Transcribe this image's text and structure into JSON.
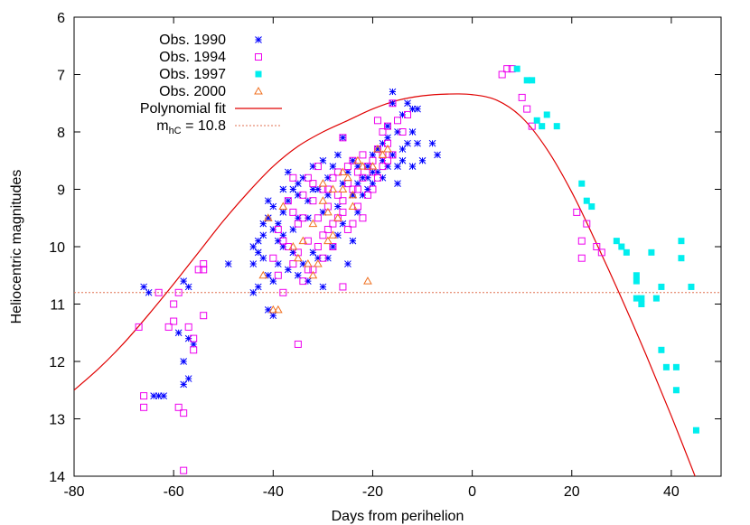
{
  "chart_data": {
    "type": "scatter",
    "title": "",
    "xlabel": "Days from perihelion",
    "ylabel": "Heliocentric magnitudes",
    "xlim": [
      -80,
      50
    ],
    "ylim": [
      6,
      14
    ],
    "y_inverted": true,
    "x_ticks": [
      "-80",
      "-60",
      "-40",
      "-20",
      "0",
      "20",
      "40"
    ],
    "y_ticks": [
      "6",
      "7",
      "8",
      "9",
      "10",
      "11",
      "12",
      "13",
      "14"
    ],
    "grid": false,
    "legend_position": "top-left",
    "colors": {
      "obs1990": "#0000ff",
      "obs1994": "#ee00ee",
      "obs1997": "#00eeee",
      "obs2000": "#f07020",
      "fit": "#e00000",
      "threshold": "#e07050"
    },
    "legend": [
      {
        "label": "Obs. 1990",
        "marker": "asterisk"
      },
      {
        "label": "Obs. 1994",
        "marker": "open-square"
      },
      {
        "label": "Obs. 1997",
        "marker": "filled-square"
      },
      {
        "label": "Obs. 2000",
        "marker": "open-triangle"
      },
      {
        "label": "Polynomial fit",
        "marker": "line"
      },
      {
        "label_main": "m",
        "label_sub": "hC",
        "label_tail": " = 10.8",
        "marker": "dotted-line"
      }
    ],
    "threshold": {
      "y": 10.8
    },
    "polynomial_fit": {
      "x": [
        -80,
        -75,
        -70,
        -65,
        -60,
        -55,
        -50,
        -45,
        -40,
        -35,
        -30,
        -25,
        -20,
        -15,
        -10,
        -5,
        0,
        5,
        10,
        15,
        20,
        25,
        30,
        35,
        40,
        45
      ],
      "y": [
        12.5,
        12.12,
        11.68,
        11.18,
        10.65,
        10.1,
        9.55,
        9.05,
        8.6,
        8.25,
        8.0,
        7.8,
        7.6,
        7.45,
        7.37,
        7.34,
        7.35,
        7.45,
        7.75,
        8.3,
        9.05,
        9.95,
        10.9,
        11.9,
        12.95,
        14.05
      ]
    },
    "series": [
      {
        "name": "Obs. 1990",
        "marker": "asterisk",
        "points": [
          [
            -66,
            10.7
          ],
          [
            -65,
            10.8
          ],
          [
            -58,
            10.6
          ],
          [
            -57,
            10.7
          ],
          [
            -59,
            11.5
          ],
          [
            -57,
            11.6
          ],
          [
            -56,
            11.7
          ],
          [
            -58,
            12.0
          ],
          [
            -57,
            12.3
          ],
          [
            -58,
            12.4
          ],
          [
            -63,
            12.6
          ],
          [
            -62,
            12.6
          ],
          [
            -64,
            12.6
          ],
          [
            -49,
            10.3
          ],
          [
            -44,
            10.8
          ],
          [
            -43,
            10.7
          ],
          [
            -44,
            10.0
          ],
          [
            -43,
            9.9
          ],
          [
            -42,
            9.8
          ],
          [
            -41,
            9.5
          ],
          [
            -40,
            9.7
          ],
          [
            -41,
            9.2
          ],
          [
            -40,
            9.3
          ],
          [
            -39,
            9.6
          ],
          [
            -38,
            9.0
          ],
          [
            -38,
            9.4
          ],
          [
            -37,
            9.2
          ],
          [
            -37,
            8.7
          ],
          [
            -36,
            9.0
          ],
          [
            -35,
            9.5
          ],
          [
            -35,
            8.9
          ],
          [
            -34,
            8.8
          ],
          [
            -33,
            9.2
          ],
          [
            -32,
            8.6
          ],
          [
            -31,
            9.0
          ],
          [
            -30,
            8.5
          ],
          [
            -29,
            8.8
          ],
          [
            -28,
            8.6
          ],
          [
            -27,
            8.4
          ],
          [
            -26,
            8.1
          ],
          [
            -25,
            8.7
          ],
          [
            -24,
            8.5
          ],
          [
            -23,
            8.9
          ],
          [
            -22,
            8.8
          ],
          [
            -21,
            8.6
          ],
          [
            -20,
            8.4
          ],
          [
            -19,
            8.3
          ],
          [
            -18,
            8.2
          ],
          [
            -17,
            7.9
          ],
          [
            -16,
            7.3
          ],
          [
            -16,
            7.5
          ],
          [
            -15,
            8.0
          ],
          [
            -14,
            7.7
          ],
          [
            -14,
            8.3
          ],
          [
            -13,
            7.5
          ],
          [
            -12,
            7.6
          ],
          [
            -12,
            8.0
          ],
          [
            -11,
            7.6
          ],
          [
            -11,
            8.2
          ],
          [
            -10,
            8.5
          ],
          [
            -8,
            8.2
          ],
          [
            -7,
            8.4
          ],
          [
            -42,
            10.2
          ],
          [
            -41,
            10.5
          ],
          [
            -40,
            10.6
          ],
          [
            -40,
            11.2
          ],
          [
            -41,
            11.1
          ],
          [
            -39,
            10.3
          ],
          [
            -38,
            10.0
          ],
          [
            -37,
            10.4
          ],
          [
            -36,
            10.1
          ],
          [
            -35,
            10.5
          ],
          [
            -34,
            10.3
          ],
          [
            -33,
            10.6
          ],
          [
            -32,
            10.1
          ],
          [
            -31,
            10.2
          ],
          [
            -30,
            10.7
          ],
          [
            -29,
            10.2
          ],
          [
            -28,
            10.0
          ],
          [
            -27,
            9.8
          ],
          [
            -26,
            9.6
          ],
          [
            -25,
            10.3
          ],
          [
            -24,
            9.9
          ],
          [
            -23,
            9.4
          ],
          [
            -22,
            9.1
          ],
          [
            -21,
            9.0
          ],
          [
            -20,
            8.9
          ],
          [
            -19,
            8.7
          ],
          [
            -18,
            8.5
          ],
          [
            -17,
            8.6
          ],
          [
            -16,
            8.4
          ],
          [
            -15,
            8.6
          ],
          [
            -14,
            8.5
          ],
          [
            -13,
            8.2
          ],
          [
            -12,
            8.6
          ],
          [
            -43,
            10.1
          ],
          [
            -42,
            9.6
          ],
          [
            -39,
            9.9
          ],
          [
            -36,
            9.7
          ],
          [
            -33,
            9.5
          ],
          [
            -30,
            9.4
          ],
          [
            -27,
            9.3
          ],
          [
            -24,
            9.1
          ],
          [
            -21,
            8.8
          ],
          [
            -18,
            8.8
          ],
          [
            -44,
            10.3
          ],
          [
            -38,
            9.8
          ],
          [
            -35,
            9.1
          ],
          [
            -32,
            9.0
          ],
          [
            -29,
            9.1
          ],
          [
            -26,
            8.9
          ],
          [
            -23,
            8.6
          ],
          [
            -20,
            8.7
          ],
          [
            -17,
            8.1
          ],
          [
            -15,
            8.9
          ]
        ]
      },
      {
        "name": "Obs. 1994",
        "marker": "open-square",
        "points": [
          [
            -67,
            11.4
          ],
          [
            -66,
            12.6
          ],
          [
            -66,
            12.8
          ],
          [
            -63,
            10.8
          ],
          [
            -61,
            11.4
          ],
          [
            -60,
            11.3
          ],
          [
            -60,
            11.0
          ],
          [
            -59,
            10.8
          ],
          [
            -59,
            12.8
          ],
          [
            -58,
            12.9
          ],
          [
            -58,
            13.9
          ],
          [
            -57,
            11.4
          ],
          [
            -56,
            11.6
          ],
          [
            -56,
            11.8
          ],
          [
            -55,
            10.4
          ],
          [
            -54,
            10.3
          ],
          [
            -54,
            10.4
          ],
          [
            -54,
            11.2
          ],
          [
            -40,
            10.2
          ],
          [
            -39,
            10.5
          ],
          [
            -38,
            10.8
          ],
          [
            -38,
            9.9
          ],
          [
            -37,
            10.0
          ],
          [
            -36,
            10.3
          ],
          [
            -36,
            9.4
          ],
          [
            -35,
            9.6
          ],
          [
            -35,
            11.7
          ],
          [
            -34,
            10.6
          ],
          [
            -34,
            9.1
          ],
          [
            -33,
            9.9
          ],
          [
            -33,
            8.8
          ],
          [
            -32,
            9.2
          ],
          [
            -32,
            10.4
          ],
          [
            -31,
            9.5
          ],
          [
            -31,
            8.6
          ],
          [
            -30,
            9.8
          ],
          [
            -30,
            10.2
          ],
          [
            -29,
            9.0
          ],
          [
            -29,
            9.3
          ],
          [
            -28,
            9.6
          ],
          [
            -28,
            10.0
          ],
          [
            -27,
            8.7
          ],
          [
            -27,
            9.1
          ],
          [
            -26,
            8.1
          ],
          [
            -26,
            10.7
          ],
          [
            -26,
            9.4
          ],
          [
            -25,
            8.9
          ],
          [
            -25,
            9.7
          ],
          [
            -24,
            9.0
          ],
          [
            -24,
            8.5
          ],
          [
            -23,
            8.7
          ],
          [
            -23,
            9.3
          ],
          [
            -22,
            8.4
          ],
          [
            -22,
            8.8
          ],
          [
            -21,
            8.6
          ],
          [
            -20,
            8.5
          ],
          [
            -20,
            9.0
          ],
          [
            -19,
            7.8
          ],
          [
            -19,
            8.3
          ],
          [
            -18,
            8.0
          ],
          [
            -18,
            8.6
          ],
          [
            -17,
            8.2
          ],
          [
            -17,
            7.9
          ],
          [
            -16,
            7.5
          ],
          [
            -16,
            8.4
          ],
          [
            -15,
            7.8
          ],
          [
            -14,
            8.0
          ],
          [
            -13,
            7.7
          ],
          [
            -39,
            9.7
          ],
          [
            -37,
            9.2
          ],
          [
            -36,
            8.8
          ],
          [
            -34,
            9.5
          ],
          [
            -32,
            8.9
          ],
          [
            -30,
            9.0
          ],
          [
            -28,
            8.8
          ],
          [
            -26,
            9.2
          ],
          [
            -24,
            9.6
          ],
          [
            -22,
            9.5
          ],
          [
            -20,
            8.7
          ],
          [
            -18,
            8.4
          ],
          [
            -35,
            10.1
          ],
          [
            -33,
            10.4
          ],
          [
            -31,
            10.0
          ],
          [
            -29,
            9.7
          ],
          [
            -27,
            9.5
          ],
          [
            -25,
            8.6
          ],
          [
            -23,
            9.0
          ],
          [
            -21,
            9.1
          ],
          [
            -19,
            8.8
          ],
          [
            -17,
            8.5
          ],
          [
            6,
            7.0
          ],
          [
            7,
            6.9
          ],
          [
            8,
            6.9
          ],
          [
            10,
            7.4
          ],
          [
            11,
            7.6
          ],
          [
            12,
            7.9
          ],
          [
            21,
            9.4
          ],
          [
            22,
            9.9
          ],
          [
            22,
            10.2
          ],
          [
            23,
            9.6
          ],
          [
            25,
            10.0
          ],
          [
            26,
            10.1
          ]
        ]
      },
      {
        "name": "Obs. 1997",
        "marker": "filled-square",
        "points": [
          [
            9,
            6.9
          ],
          [
            11,
            7.1
          ],
          [
            12,
            7.1
          ],
          [
            13,
            7.8
          ],
          [
            14,
            7.9
          ],
          [
            15,
            7.7
          ],
          [
            17,
            7.9
          ],
          [
            22,
            8.9
          ],
          [
            23,
            9.2
          ],
          [
            24,
            9.3
          ],
          [
            29,
            9.9
          ],
          [
            30,
            10.0
          ],
          [
            31,
            10.1
          ],
          [
            33,
            10.5
          ],
          [
            33,
            10.6
          ],
          [
            33,
            10.9
          ],
          [
            34,
            10.9
          ],
          [
            34,
            11.0
          ],
          [
            36,
            10.1
          ],
          [
            37,
            10.9
          ],
          [
            38,
            11.8
          ],
          [
            38,
            10.7
          ],
          [
            39,
            12.1
          ],
          [
            41,
            12.1
          ],
          [
            41,
            12.5
          ],
          [
            42,
            9.9
          ],
          [
            42,
            10.2
          ],
          [
            44,
            10.7
          ],
          [
            45,
            13.2
          ]
        ]
      },
      {
        "name": "Obs. 2000",
        "marker": "open-triangle",
        "points": [
          [
            -42,
            10.5
          ],
          [
            -41,
            9.5
          ],
          [
            -40,
            11.1
          ],
          [
            -39,
            11.1
          ],
          [
            -38,
            9.3
          ],
          [
            -36,
            10.0
          ],
          [
            -35,
            10.2
          ],
          [
            -34,
            9.9
          ],
          [
            -33,
            10.3
          ],
          [
            -32,
            9.6
          ],
          [
            -31,
            10.3
          ],
          [
            -30,
            8.9
          ],
          [
            -29,
            9.4
          ],
          [
            -28,
            9.8
          ],
          [
            -27,
            9.5
          ],
          [
            -26,
            9.0
          ],
          [
            -25,
            8.8
          ],
          [
            -24,
            9.3
          ],
          [
            -23,
            8.5
          ],
          [
            -22,
            8.6
          ],
          [
            -21,
            10.6
          ],
          [
            -20,
            8.6
          ],
          [
            -19,
            8.3
          ],
          [
            -18,
            8.4
          ],
          [
            -17,
            8.3
          ],
          [
            -30,
            9.2
          ],
          [
            -28,
            9.0
          ],
          [
            -26,
            8.7
          ],
          [
            -24,
            9.1
          ],
          [
            -29,
            9.9
          ],
          [
            -32,
            10.5
          ]
        ]
      }
    ]
  }
}
